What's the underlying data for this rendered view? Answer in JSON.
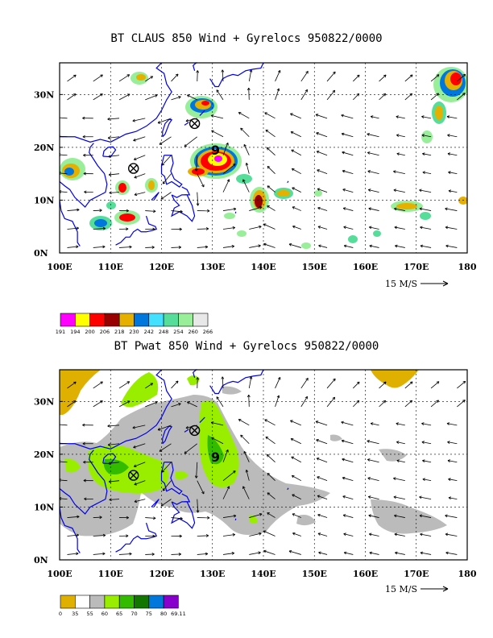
{
  "panels": [
    {
      "id": "claus",
      "title": "BT CLAUS 850 Wind + Gyrelocs 950822/0000",
      "colorbar_values": [
        "191",
        "194",
        "200",
        "206",
        "218",
        "230",
        "242",
        "248",
        "254",
        "260",
        "266"
      ],
      "colorbar_colors": [
        "#ff00ff",
        "#ffff00",
        "#ff0000",
        "#990000",
        "#e6b000",
        "#0077dd",
        "#44e0ff",
        "#55dd99",
        "#99ee99",
        "#e8e8e8"
      ]
    },
    {
      "id": "pwat",
      "title": "BT Pwat 850 Wind + Gyrelocs 950822/0000",
      "colorbar_values": [
        "0",
        "35",
        "55",
        "60",
        "65",
        "70",
        "75",
        "80",
        "69.11"
      ],
      "colorbar_colors": [
        "#e0b000",
        "#ffffff",
        "#bbbbbb",
        "#99ee00",
        "#33bb00",
        "#117700",
        "#0077dd",
        "#8800cc"
      ]
    }
  ],
  "axes": {
    "lon_labels": [
      "100E",
      "110E",
      "120E",
      "130E",
      "140E",
      "150E",
      "160E",
      "170E",
      "180"
    ],
    "lat_labels": [
      "0N",
      "10N",
      "20N",
      "30N"
    ],
    "lon_range": [
      100,
      180
    ],
    "lat_range": [
      0,
      36
    ]
  },
  "wind_scale_label": "15 M/S",
  "gyre_markers": [
    {
      "lon": 114.5,
      "lat": 16.0
    },
    {
      "lon": 126.5,
      "lat": 24.5
    }
  ],
  "storm_symbol": {
    "lon": 130.5,
    "lat": 19.5,
    "label": "9"
  },
  "colors": {
    "coast": "#0000ee",
    "grid": "#000000",
    "arrow": "#000000"
  }
}
